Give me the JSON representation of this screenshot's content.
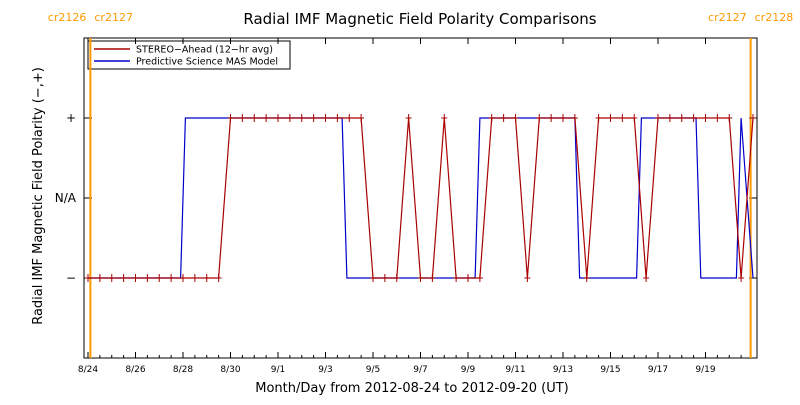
{
  "chart_data": {
    "type": "line",
    "title": "Radial IMF Magnetic Field Polarity Comparisons",
    "xlabel": "Month/Day from 2012-08-24 to 2012-09-20 (UT)",
    "ylabel": "Radial IMF Magnetic Field Polarity (−,+)",
    "x_domain_days": [
      0,
      28
    ],
    "y_categories": [
      "−",
      "N/A",
      "+"
    ],
    "y_values_map": {
      "−": -1,
      "N/A": 0,
      "+": 1
    },
    "ylim": [
      -2,
      2
    ],
    "x_ticks": [
      {
        "day": 0,
        "label": "8/24"
      },
      {
        "day": 2,
        "label": "8/26"
      },
      {
        "day": 4,
        "label": "8/28"
      },
      {
        "day": 6,
        "label": "8/30"
      },
      {
        "day": 8,
        "label": "9/1"
      },
      {
        "day": 10,
        "label": "9/3"
      },
      {
        "day": 12,
        "label": "9/5"
      },
      {
        "day": 14,
        "label": "9/7"
      },
      {
        "day": 16,
        "label": "9/9"
      },
      {
        "day": 18,
        "label": "9/11"
      },
      {
        "day": 20,
        "label": "9/13"
      },
      {
        "day": 22,
        "label": "9/15"
      },
      {
        "day": 24,
        "label": "9/17"
      },
      {
        "day": 26,
        "label": "9/19"
      }
    ],
    "carrington_markers": [
      {
        "day": 0.1,
        "label_left": "cr2126",
        "label_right": "cr2127"
      },
      {
        "day": 27.9,
        "label_left": "cr2127",
        "label_right": "cr2128"
      }
    ],
    "series": [
      {
        "name": "STEREO−Ahead (12−hr avg)",
        "color": "#aa0000",
        "x": [
          0,
          0.5,
          1,
          1.5,
          2,
          2.5,
          3,
          3.5,
          4,
          4.5,
          5,
          5.5,
          6,
          6.5,
          7,
          7.5,
          8,
          8.5,
          9,
          9.5,
          10,
          10.5,
          11,
          11.5,
          12,
          12.5,
          13,
          13.5,
          14,
          14.5,
          15,
          15.5,
          16,
          16.5,
          17,
          17.5,
          18,
          18.5,
          19,
          19.5,
          20,
          20.5,
          21,
          21.5,
          22,
          22.5,
          23,
          23.5,
          24,
          24.5,
          25,
          25.5,
          26,
          26.5,
          27,
          27.5,
          28
        ],
        "values": [
          -1,
          -1,
          -1,
          -1,
          -1,
          -1,
          -1,
          -1,
          -1,
          -1,
          -1,
          -1,
          1,
          1,
          1,
          1,
          1,
          1,
          1,
          1,
          1,
          1,
          1,
          1,
          -1,
          -1,
          -1,
          1,
          -1,
          -1,
          1,
          -1,
          -1,
          -1,
          1,
          1,
          1,
          -1,
          1,
          1,
          1,
          1,
          -1,
          1,
          1,
          1,
          1,
          -1,
          1,
          1,
          1,
          1,
          1,
          1,
          1,
          -1,
          1
        ]
      },
      {
        "name": "Predictive Science MAS Model",
        "color": "#0000cc",
        "x": [
          0,
          3.9,
          4.1,
          10.7,
          10.9,
          16.3,
          16.5,
          20.5,
          20.7,
          23.1,
          23.3,
          25.6,
          25.8,
          27.3,
          27.5,
          28
        ],
        "values": [
          -1,
          -1,
          1,
          1,
          -1,
          -1,
          1,
          1,
          -1,
          -1,
          1,
          1,
          -1,
          -1,
          1,
          -1
        ]
      }
    ],
    "legend_position": "top-left",
    "grid": false
  }
}
